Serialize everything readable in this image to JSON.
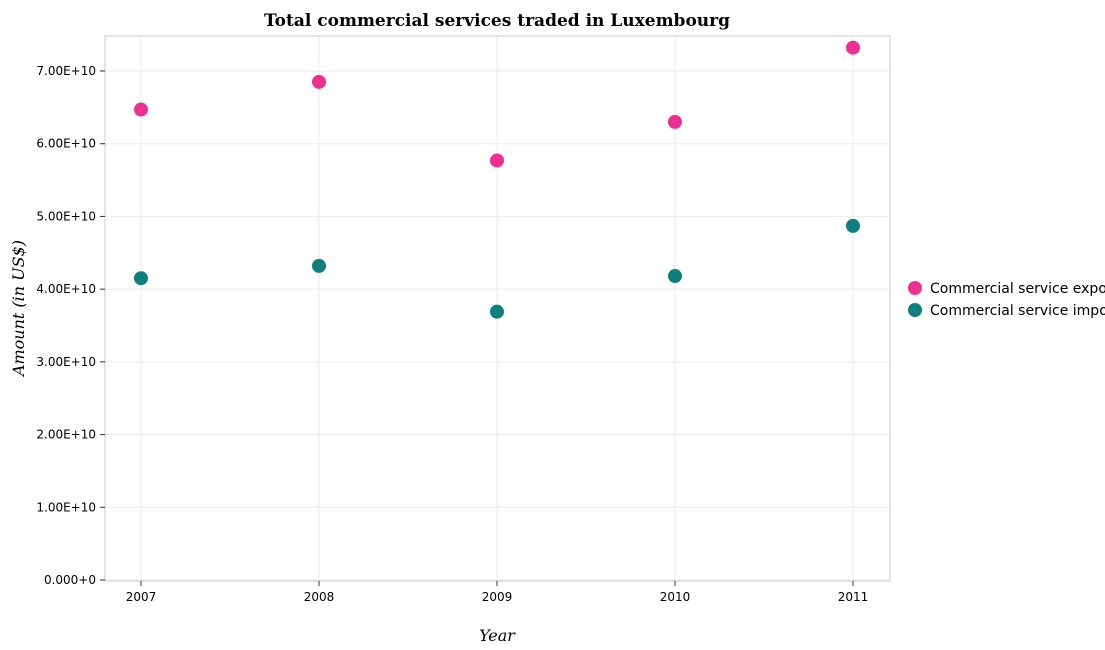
{
  "chart_data": {
    "type": "scatter",
    "title": "Total commercial services traded in Luxembourg",
    "xlabel": "Year",
    "ylabel": "Amount (in US$)",
    "categories": [
      "2007",
      "2008",
      "2009",
      "2010",
      "2011"
    ],
    "ylim": [
      0,
      75000000000
    ],
    "yticks": [
      0,
      10000000000,
      20000000000,
      30000000000,
      40000000000,
      50000000000,
      60000000000,
      70000000000
    ],
    "ytick_labels": [
      "0.000+0",
      "1.00E+10",
      "2.00E+10",
      "3.00E+10",
      "4.00E+10",
      "5.00E+10",
      "6.00E+10",
      "7.00E+10"
    ],
    "grid": true,
    "legend_position": "right",
    "series": [
      {
        "name": "Commercial service exports",
        "color": "#ee2f92",
        "values": [
          64700000000,
          68500000000,
          57700000000,
          63000000000,
          73200000000
        ]
      },
      {
        "name": "Commercial service imports",
        "color": "#0e7f7f",
        "values": [
          41500000000,
          43200000000,
          36900000000,
          41800000000,
          48700000000
        ]
      }
    ]
  }
}
